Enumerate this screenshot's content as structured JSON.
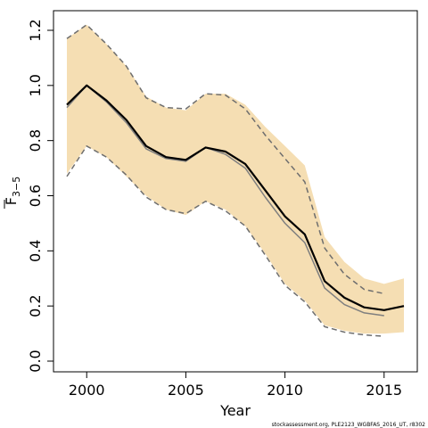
{
  "chart_data": {
    "type": "line",
    "xlabel": "Year",
    "ylabel_main": "F",
    "ylabel_sub": "3−5",
    "xlim": [
      1999,
      2016
    ],
    "ylim": [
      0,
      1.25
    ],
    "x_ticks": [
      2000,
      2005,
      2010,
      2015
    ],
    "y_ticks": [
      {
        "value": 0.0,
        "label": "0.0"
      },
      {
        "value": 0.2,
        "label": "0.2"
      },
      {
        "value": 0.4,
        "label": "0.4"
      },
      {
        "value": 0.6,
        "label": "0.6"
      },
      {
        "value": 0.8,
        "label": "0.8"
      },
      {
        "value": 1.0,
        "label": "1.0"
      },
      {
        "value": 1.2,
        "label": "1.2"
      }
    ],
    "grid": false,
    "band_color": "#f5deb3",
    "x": [
      1999,
      2000,
      2001,
      2002,
      2003,
      2004,
      2005,
      2006,
      2007,
      2008,
      2009,
      2010,
      2011,
      2012,
      2013,
      2014,
      2015,
      2016
    ],
    "band_upper": [
      1.17,
      1.22,
      1.15,
      1.07,
      0.96,
      0.92,
      0.91,
      0.97,
      0.97,
      0.93,
      0.85,
      0.78,
      0.71,
      0.45,
      0.36,
      0.3,
      0.28,
      0.3
    ],
    "band_lower": [
      0.68,
      0.78,
      0.74,
      0.67,
      0.6,
      0.55,
      0.53,
      0.58,
      0.55,
      0.49,
      0.39,
      0.28,
      0.22,
      0.13,
      0.11,
      0.1,
      0.1,
      0.105
    ],
    "series": [
      {
        "style": "solid-black",
        "color": "#000000",
        "width": 2.2,
        "dash": "",
        "x": [
          1999,
          2000,
          2001,
          2002,
          2003,
          2004,
          2005,
          2006,
          2007,
          2008,
          2009,
          2010,
          2011,
          2012,
          2013,
          2014,
          2015,
          2016
        ],
        "values": [
          0.93,
          1.0,
          0.945,
          0.875,
          0.78,
          0.74,
          0.73,
          0.775,
          0.76,
          0.715,
          0.62,
          0.525,
          0.46,
          0.29,
          0.23,
          0.195,
          0.185,
          0.2
        ]
      },
      {
        "style": "solid-grey",
        "color": "#7f7f7f",
        "width": 1.5,
        "dash": "",
        "x": [
          1999,
          2000,
          2001,
          2002,
          2003,
          2004,
          2005,
          2006,
          2007,
          2008,
          2009,
          2010,
          2011,
          2012,
          2013,
          2014,
          2015
        ],
        "values": [
          0.92,
          1.0,
          0.94,
          0.865,
          0.77,
          0.735,
          0.725,
          0.775,
          0.75,
          0.7,
          0.595,
          0.5,
          0.43,
          0.265,
          0.205,
          0.175,
          0.165
        ]
      },
      {
        "style": "dashed-grey-upper",
        "color": "#6e6e6e",
        "width": 1.5,
        "dash": "6,4",
        "x": [
          1999,
          2000,
          2001,
          2002,
          2003,
          2004,
          2005,
          2006,
          2007,
          2008,
          2009,
          2010,
          2011,
          2012,
          2013,
          2014,
          2015
        ],
        "values": [
          1.17,
          1.22,
          1.15,
          1.07,
          0.955,
          0.92,
          0.915,
          0.97,
          0.965,
          0.915,
          0.82,
          0.735,
          0.65,
          0.41,
          0.315,
          0.26,
          0.245
        ]
      },
      {
        "style": "dashed-grey-lower",
        "color": "#6e6e6e",
        "width": 1.5,
        "dash": "6,4",
        "x": [
          1999,
          2000,
          2001,
          2002,
          2003,
          2004,
          2005,
          2006,
          2007,
          2008,
          2009,
          2010,
          2011,
          2012,
          2013,
          2014,
          2015
        ],
        "values": [
          0.67,
          0.78,
          0.74,
          0.675,
          0.595,
          0.55,
          0.535,
          0.58,
          0.545,
          0.49,
          0.385,
          0.275,
          0.215,
          0.125,
          0.105,
          0.095,
          0.09
        ]
      }
    ]
  },
  "footer": "stockassessment.org, PLE2123_WGBFAS_2016_UT, r8302"
}
